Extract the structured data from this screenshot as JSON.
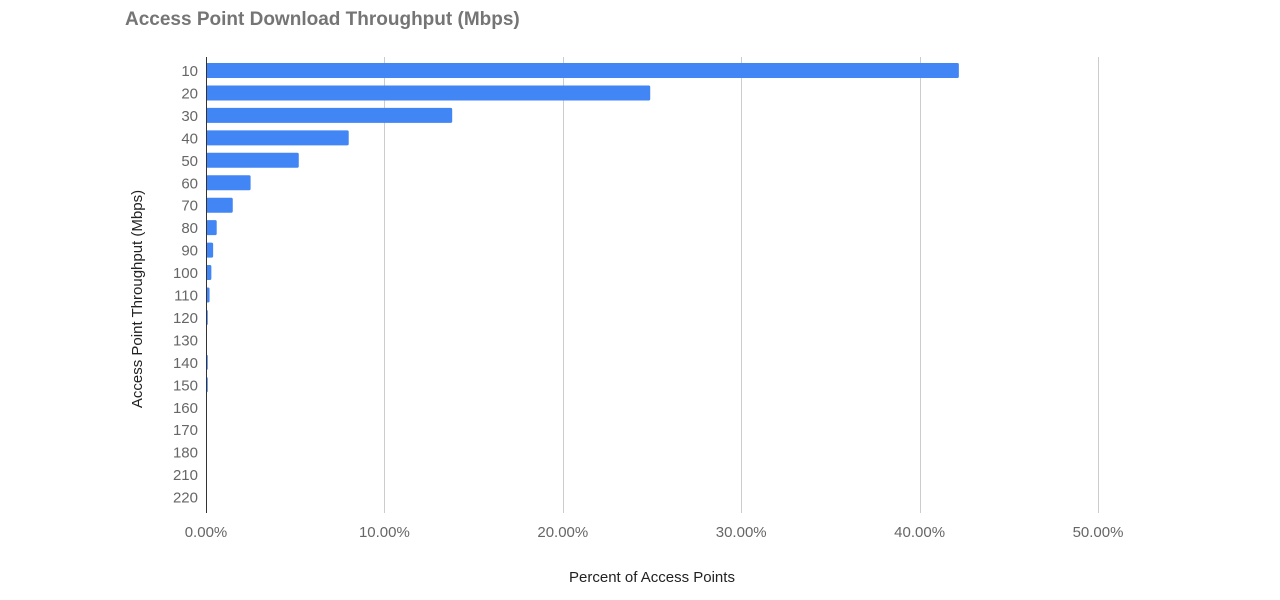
{
  "chart_data": {
    "type": "bar",
    "orientation": "horizontal",
    "title": "Access Point Download Throughput (Mbps)",
    "xlabel": "Percent of Access Points",
    "ylabel": "Access Point Throughput (Mbps)",
    "categories": [
      "10",
      "20",
      "30",
      "40",
      "50",
      "60",
      "70",
      "80",
      "90",
      "100",
      "110",
      "120",
      "130",
      "140",
      "150",
      "160",
      "170",
      "180",
      "210",
      "220"
    ],
    "values": [
      42.2,
      24.9,
      13.8,
      8.0,
      5.2,
      2.5,
      1.5,
      0.6,
      0.4,
      0.3,
      0.2,
      0.1,
      0.0,
      0.1,
      0.1,
      0.0,
      0.0,
      0.0,
      0.0,
      0.0
    ],
    "xlim": [
      0,
      50
    ],
    "x_ticks": [
      0,
      10,
      20,
      30,
      40,
      50
    ],
    "x_tick_labels": [
      "0.00%",
      "10.00%",
      "20.00%",
      "30.00%",
      "40.00%",
      "50.00%"
    ],
    "grid": "vertical",
    "legend": "none",
    "bar_color": "#4285f4",
    "grid_color": "#cccccc",
    "axis_color": "#333333"
  }
}
